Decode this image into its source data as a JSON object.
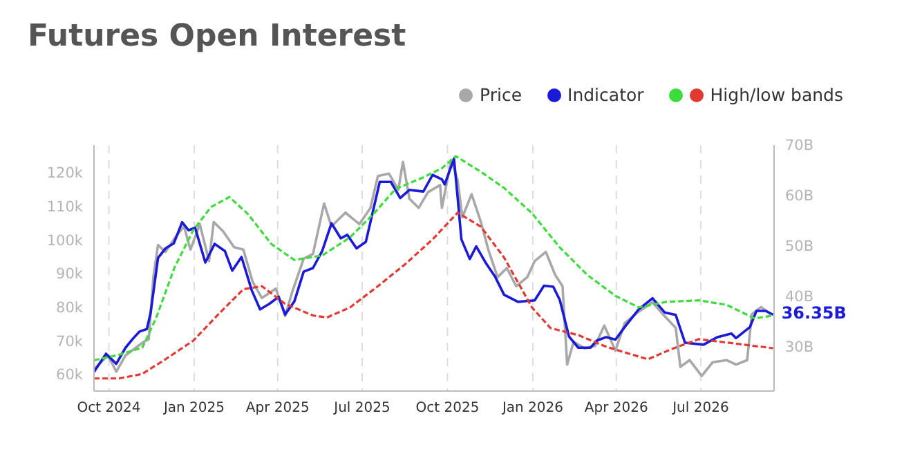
{
  "chart_data": {
    "type": "line",
    "title": "Futures Open Interest",
    "legend": "top right",
    "grid": "x",
    "xlim": [
      "2024-09-15",
      "2026-09-18"
    ],
    "xticks": [
      {
        "value": "2024-10-01",
        "label": "Oct 2024"
      },
      {
        "value": "2025-01-01",
        "label": "Jan 2025"
      },
      {
        "value": "2025-04-01",
        "label": "Apr 2025"
      },
      {
        "value": "2025-07-01",
        "label": "Jul 2025"
      },
      {
        "value": "2025-10-01",
        "label": "Oct 2025"
      },
      {
        "value": "2026-01-01",
        "label": "Jan 2026"
      },
      {
        "value": "2026-04-01",
        "label": "Apr 2026"
      },
      {
        "value": "2026-07-01",
        "label": "Jul 2026"
      }
    ],
    "ylim": [
      55,
      128.2
    ],
    "yticks": [
      {
        "value": 60,
        "label": "60k"
      },
      {
        "value": 70,
        "label": "70k"
      },
      {
        "value": 80,
        "label": "80k"
      },
      {
        "value": 90,
        "label": "90k"
      },
      {
        "value": 100,
        "label": "100k"
      },
      {
        "value": 110,
        "label": "110k"
      },
      {
        "value": 120,
        "label": "120k"
      }
    ],
    "y2lim": [
      21.2,
      70
    ],
    "y2ticks": [
      {
        "value": 30,
        "label": "30B"
      },
      {
        "value": 40,
        "label": "40B"
      },
      {
        "value": 50,
        "label": "50B"
      },
      {
        "value": 60,
        "label": "60B"
      },
      {
        "value": 70,
        "label": "70B"
      }
    ],
    "marker": "none",
    "series": [
      {
        "name": "Price",
        "color": "#a8a8a8",
        "line_style": "solid",
        "x": [
          "2024-09-15",
          "2024-09-30",
          "2024-10-09",
          "2024-10-19",
          "2024-10-29",
          "2024-11-08",
          "2024-11-13",
          "2024-11-18",
          "2024-11-23",
          "2024-12-01",
          "2024-12-11",
          "2024-12-21",
          "2024-12-28",
          "2025-01-07",
          "2025-01-17",
          "2025-01-22",
          "2025-02-01",
          "2025-02-13",
          "2025-02-23",
          "2025-03-05",
          "2025-03-15",
          "2025-03-30",
          "2025-04-09",
          "2025-04-17",
          "2025-04-29",
          "2025-05-09",
          "2025-05-21",
          "2025-05-29",
          "2025-06-13",
          "2025-06-28",
          "2025-07-10",
          "2025-07-18",
          "2025-07-30",
          "2025-08-09",
          "2025-08-14",
          "2025-08-21",
          "2025-08-31",
          "2025-09-10",
          "2025-09-23",
          "2025-09-25",
          "2025-10-05",
          "2025-10-12",
          "2025-10-17",
          "2025-10-27",
          "2025-11-06",
          "2025-11-14",
          "2025-11-24",
          "2025-12-04",
          "2025-12-14",
          "2025-12-26",
          "2026-01-03",
          "2026-01-15",
          "2026-01-25",
          "2026-02-02",
          "2026-02-07",
          "2026-02-14",
          "2026-02-26",
          "2026-03-09",
          "2026-03-19",
          "2026-03-31",
          "2026-04-10",
          "2026-04-25",
          "2026-05-10",
          "2026-05-23",
          "2026-06-04",
          "2026-06-09",
          "2026-06-19",
          "2026-07-02",
          "2026-07-14",
          "2026-07-29",
          "2026-08-08",
          "2026-08-20",
          "2026-08-25",
          "2026-09-04",
          "2026-09-14"
        ],
        "values": [
          61.5,
          65.6,
          60.8,
          65.6,
          67.7,
          69.7,
          70.4,
          88.9,
          98.5,
          96.4,
          100.5,
          104.0,
          97.1,
          104.7,
          93.7,
          105.3,
          102.6,
          97.8,
          97.1,
          87.5,
          82.7,
          85.5,
          77.3,
          84.8,
          94.4,
          95.8,
          110.8,
          104.0,
          108.1,
          104.7,
          109.5,
          119.0,
          119.7,
          114.9,
          123.2,
          112.2,
          109.5,
          114.2,
          116.3,
          109.5,
          123.8,
          117.7,
          106.7,
          113.6,
          105.3,
          97.1,
          88.9,
          91.6,
          86.2,
          88.9,
          93.7,
          96.4,
          89.6,
          86.2,
          62.9,
          69.7,
          67.7,
          68.4,
          74.5,
          67.0,
          75.2,
          78.6,
          81.4,
          77.3,
          73.8,
          62.2,
          64.2,
          59.5,
          63.6,
          64.2,
          62.9,
          64.2,
          77.9,
          80.0,
          77.9
        ]
      },
      {
        "name": "Indicator",
        "color": "#1a1ad8",
        "axis": "y2",
        "line_style": "solid",
        "x": [
          "2024-09-15",
          "2024-09-28",
          "2024-10-09",
          "2024-10-19",
          "2024-10-27",
          "2024-11-03",
          "2024-11-11",
          "2024-11-15",
          "2024-11-23",
          "2024-12-01",
          "2024-12-10",
          "2024-12-19",
          "2024-12-26",
          "2025-01-02",
          "2025-01-13",
          "2025-01-23",
          "2025-02-03",
          "2025-02-11",
          "2025-02-21",
          "2025-03-04",
          "2025-03-13",
          "2025-03-23",
          "2025-04-02",
          "2025-04-09",
          "2025-04-19",
          "2025-04-29",
          "2025-05-09",
          "2025-05-19",
          "2025-05-29",
          "2025-06-08",
          "2025-06-15",
          "2025-06-25",
          "2025-07-05",
          "2025-07-20",
          "2025-08-01",
          "2025-08-11",
          "2025-08-21",
          "2025-09-05",
          "2025-09-15",
          "2025-09-25",
          "2025-09-28",
          "2025-10-08",
          "2025-10-12",
          "2025-10-16",
          "2025-10-25",
          "2025-11-01",
          "2025-11-11",
          "2025-11-21",
          "2025-12-01",
          "2025-12-16",
          "2026-01-03",
          "2026-01-13",
          "2026-01-23",
          "2026-01-30",
          "2026-02-09",
          "2026-02-19",
          "2026-03-04",
          "2026-03-11",
          "2026-03-21",
          "2026-03-31",
          "2026-04-10",
          "2026-04-25",
          "2026-05-10",
          "2026-05-23",
          "2026-06-04",
          "2026-06-14",
          "2026-07-04",
          "2026-07-19",
          "2026-08-03",
          "2026-08-08",
          "2026-08-23",
          "2026-08-30",
          "2026-09-09",
          "2026-09-17"
        ],
        "values": [
          25.0,
          28.6,
          26.6,
          29.8,
          31.6,
          33.0,
          33.5,
          36.7,
          47.6,
          49.5,
          50.5,
          54.7,
          53.1,
          53.6,
          46.7,
          50.4,
          49.0,
          45.1,
          47.8,
          41.2,
          37.4,
          38.5,
          39.9,
          36.4,
          39.0,
          44.9,
          45.6,
          49.0,
          54.5,
          51.5,
          52.2,
          49.5,
          50.8,
          62.7,
          62.7,
          59.5,
          61.1,
          60.8,
          64.1,
          63.2,
          62.2,
          67.3,
          59.5,
          51.3,
          47.4,
          49.9,
          46.7,
          44.0,
          40.3,
          38.9,
          39.2,
          42.1,
          41.9,
          39.3,
          32.0,
          29.8,
          29.8,
          31.2,
          31.9,
          31.4,
          33.9,
          37.4,
          39.6,
          36.8,
          36.3,
          30.8,
          30.4,
          31.9,
          32.6,
          31.7,
          33.9,
          37.1,
          37.1,
          36.35
        ],
        "value_labels": [
          null,
          null,
          null,
          null,
          null,
          null,
          null,
          null,
          null,
          null,
          null,
          null,
          null,
          null,
          null,
          null,
          null,
          null,
          null,
          null,
          null,
          null,
          null,
          null,
          null,
          null,
          null,
          null,
          null,
          null,
          null,
          null,
          null,
          null,
          null,
          null,
          null,
          null,
          null,
          null,
          null,
          null,
          null,
          null,
          null,
          null,
          null,
          null,
          null,
          null,
          null,
          null,
          null,
          null,
          null,
          null,
          null,
          null,
          null,
          null,
          null,
          null,
          null,
          null,
          null,
          null,
          null,
          null,
          null,
          null,
          null,
          null,
          null,
          "36.35B"
        ]
      },
      {
        "color": "#3ddc3d",
        "axis": "y2",
        "line_style": "dashed",
        "x": [
          "2024-09-15",
          "2024-10-12",
          "2024-11-06",
          "2024-11-21",
          "2024-12-11",
          "2024-12-31",
          "2025-01-19",
          "2025-02-08",
          "2025-02-28",
          "2025-03-25",
          "2025-04-19",
          "2025-05-19",
          "2025-06-18",
          "2025-07-13",
          "2025-08-06",
          "2025-09-05",
          "2025-09-25",
          "2025-10-10",
          "2025-11-06",
          "2025-12-01",
          "2025-12-31",
          "2026-01-30",
          "2026-03-01",
          "2026-03-31",
          "2026-04-25",
          "2026-05-25",
          "2026-06-29",
          "2026-07-29",
          "2026-08-28",
          "2026-09-17"
        ],
        "values": [
          27.3,
          28.4,
          29.8,
          35.7,
          45.8,
          53.1,
          57.7,
          59.7,
          56.3,
          50.4,
          47.2,
          48.1,
          51.7,
          56.3,
          61.3,
          63.6,
          65.4,
          67.8,
          64.7,
          61.5,
          56.5,
          49.7,
          44.2,
          40.1,
          37.8,
          38.9,
          39.2,
          38.3,
          35.6,
          36.2
        ]
      },
      {
        "name": "High/low bands",
        "color": "#e23a32",
        "axis": "y2",
        "line_style": "dashed",
        "x": [
          "2024-09-15",
          "2024-10-12",
          "2024-11-06",
          "2024-12-01",
          "2024-12-31",
          "2025-01-29",
          "2025-02-23",
          "2025-03-15",
          "2025-04-09",
          "2025-05-09",
          "2025-05-24",
          "2025-06-18",
          "2025-07-18",
          "2025-08-16",
          "2025-09-15",
          "2025-10-12",
          "2025-11-06",
          "2025-12-01",
          "2025-12-31",
          "2026-01-20",
          "2026-02-19",
          "2026-03-21",
          "2026-04-15",
          "2026-05-05",
          "2026-05-30",
          "2026-06-29",
          "2026-08-08",
          "2026-09-17"
        ],
        "values": [
          23.7,
          23.7,
          24.6,
          27.5,
          31.2,
          36.8,
          41.4,
          42.0,
          38.5,
          36.2,
          35.8,
          37.8,
          42.0,
          46.3,
          51.3,
          56.6,
          53.8,
          47.7,
          37.8,
          33.7,
          32.3,
          30.0,
          28.6,
          27.5,
          29.5,
          31.5,
          30.6,
          29.7
        ]
      }
    ]
  }
}
